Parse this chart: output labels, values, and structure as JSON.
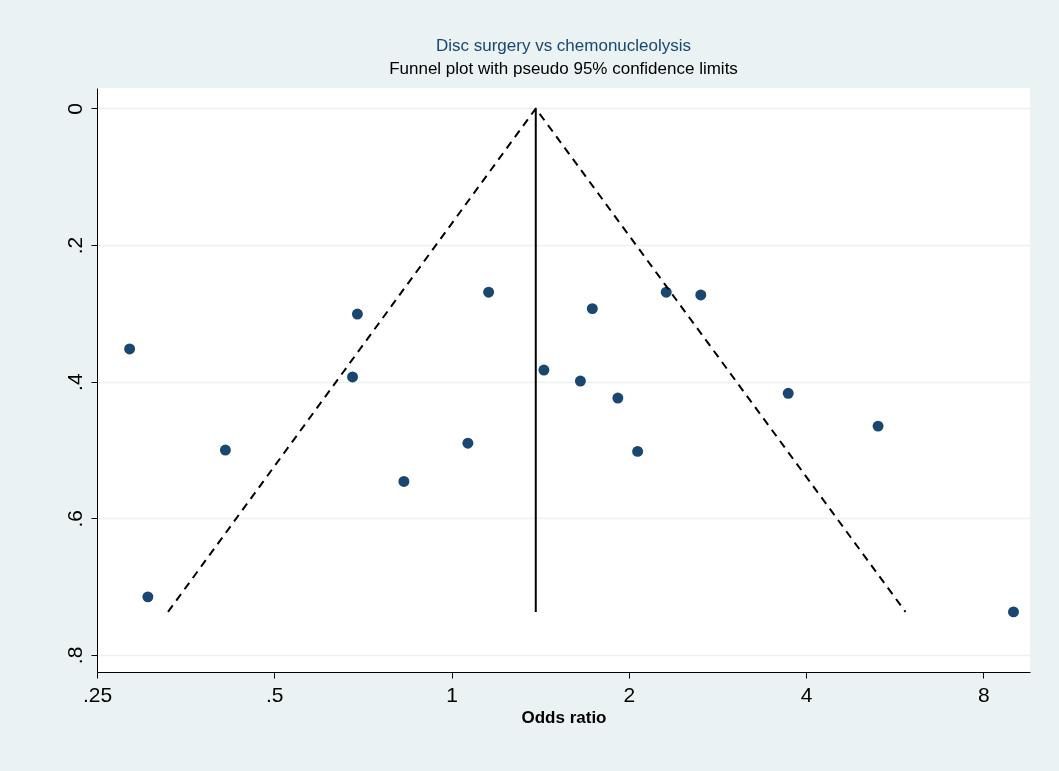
{
  "chart_data": {
    "type": "scatter",
    "title": "Disc surgery vs chemonucleolysis",
    "subtitle": "Funnel plot with pseudo 95% confidence limits",
    "xlabel": "Odds ratio",
    "log": "x",
    "grid": "y",
    "marker": "circle",
    "xlim": [
      0.25,
      9.6
    ],
    "ylim": [
      0.825,
      -0.03
    ],
    "xticks": [
      {
        "value": 0.25,
        "label": ".25"
      },
      {
        "value": 0.5,
        "label": ".5"
      },
      1,
      2,
      4,
      8
    ],
    "yticks": [
      0,
      {
        "value": 0.2,
        "label": ".2"
      },
      {
        "value": 0.4,
        "label": ".4"
      },
      {
        "value": 0.6,
        "label": ".6"
      },
      {
        "value": 0.8,
        "label": ".8"
      }
    ],
    "series": [
      {
        "color": "#1a476f",
        "x": [
          0.284,
          0.305,
          0.413,
          0.692,
          0.679,
          0.83,
          1.066,
          1.156,
          1.435,
          1.655,
          1.734,
          1.916,
          2.07,
          2.315,
          2.65,
          3.73,
          5.3,
          9.0
        ],
        "values": [
          0.352,
          0.715,
          0.5,
          0.301,
          0.393,
          0.546,
          0.49,
          0.269,
          0.383,
          0.399,
          0.293,
          0.424,
          0.502,
          0.269,
          0.273,
          0.417,
          0.465,
          0.737
        ]
      },
      {
        "type": "line",
        "marker": "none",
        "color": "#000000",
        "line_style": "dashed",
        "x": [
          0.33,
          1.39,
          5.9
        ],
        "values": [
          0.737,
          0,
          0.737
        ]
      },
      {
        "type": "line",
        "marker": "none",
        "color": "#000000",
        "line_style": "solid",
        "x": [
          1.39,
          1.39
        ],
        "values": [
          0,
          0.737
        ]
      }
    ]
  }
}
